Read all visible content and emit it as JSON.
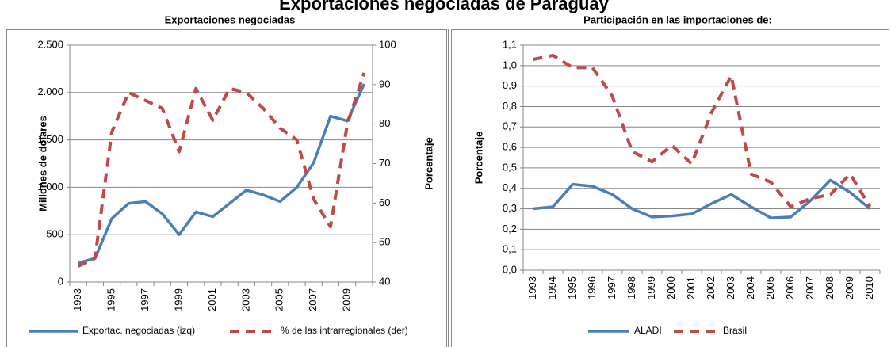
{
  "title": "Exportaciones negociadas de Paraguay",
  "chart_data": [
    {
      "type": "line",
      "title": "Exportaciones negociadas",
      "categories": [
        "1993",
        null,
        "1995",
        null,
        "1997",
        null,
        "1999",
        null,
        "2001",
        null,
        "2003",
        null,
        "2005",
        null,
        "2007",
        null,
        "2009",
        null
      ],
      "ylabel": "Millones de dólares",
      "y2label": "Porcentaje",
      "ylim": [
        0,
        2500
      ],
      "yticks": [
        0,
        500,
        {
          "value": 1000,
          "label": "1.000"
        },
        {
          "value": 1500,
          "label": "1.500"
        },
        {
          "value": 2000,
          "label": "2.000"
        },
        {
          "value": 2500,
          "label": "2.500"
        }
      ],
      "y2lim": [
        40,
        100
      ],
      "y2ticks": [
        40,
        50,
        60,
        70,
        80,
        90,
        100
      ],
      "grid": true,
      "series": [
        {
          "name": "Exportac. negociadas (izq)",
          "color": "#4a7ebb",
          "values": [
            200,
            250,
            670,
            830,
            850,
            720,
            500,
            740,
            690,
            830,
            970,
            920,
            850,
            1000,
            1260,
            1750,
            1700,
            2090
          ]
        },
        {
          "name": "% de las intrarregionales (der)",
          "color": "#be4b48",
          "axis": "y2",
          "dashed": true,
          "values": [
            44,
            46,
            78,
            88,
            86,
            84,
            73,
            89,
            81,
            89,
            88,
            84,
            79,
            76,
            61,
            54,
            80,
            93
          ]
        }
      ]
    },
    {
      "type": "line",
      "title": "Participación en las importaciones de:",
      "categories": [
        "1993",
        "1994",
        "1995",
        "1996",
        "1997",
        "1998",
        "1999",
        "2000",
        "2001",
        "2002",
        "2003",
        "2004",
        "2005",
        "2006",
        "2007",
        "2008",
        "2009",
        "2010"
      ],
      "ylabel": "Porcentaje",
      "ylim": [
        0,
        1.1
      ],
      "yticks": [
        {
          "value": 0,
          "label": "0,0"
        },
        {
          "value": 0.1,
          "label": "0,1"
        },
        {
          "value": 0.2,
          "label": "0,2"
        },
        {
          "value": 0.3,
          "label": "0,3"
        },
        {
          "value": 0.4,
          "label": "0,4"
        },
        {
          "value": 0.5,
          "label": "0,5"
        },
        {
          "value": 0.6,
          "label": "0,6"
        },
        {
          "value": 0.7,
          "label": "0,7"
        },
        {
          "value": 0.8,
          "label": "0,8"
        },
        {
          "value": 0.9,
          "label": "0,9"
        },
        {
          "value": 1.0,
          "label": "1,0"
        },
        {
          "value": 1.1,
          "label": "1,1"
        }
      ],
      "grid": true,
      "series": [
        {
          "name": "ALADI",
          "color": "#4a7ebb",
          "values": [
            0.3,
            0.31,
            0.42,
            0.41,
            0.37,
            0.3,
            0.26,
            0.265,
            0.275,
            0.325,
            0.37,
            0.31,
            0.255,
            0.26,
            0.34,
            0.44,
            0.38,
            0.3
          ]
        },
        {
          "name": "Brasil",
          "color": "#be4b48",
          "dashed": true,
          "values": [
            1.03,
            1.05,
            0.99,
            0.99,
            0.85,
            0.58,
            0.53,
            0.61,
            0.52,
            0.77,
            0.95,
            0.47,
            0.43,
            0.31,
            0.35,
            0.37,
            0.47,
            0.31
          ]
        }
      ]
    }
  ]
}
